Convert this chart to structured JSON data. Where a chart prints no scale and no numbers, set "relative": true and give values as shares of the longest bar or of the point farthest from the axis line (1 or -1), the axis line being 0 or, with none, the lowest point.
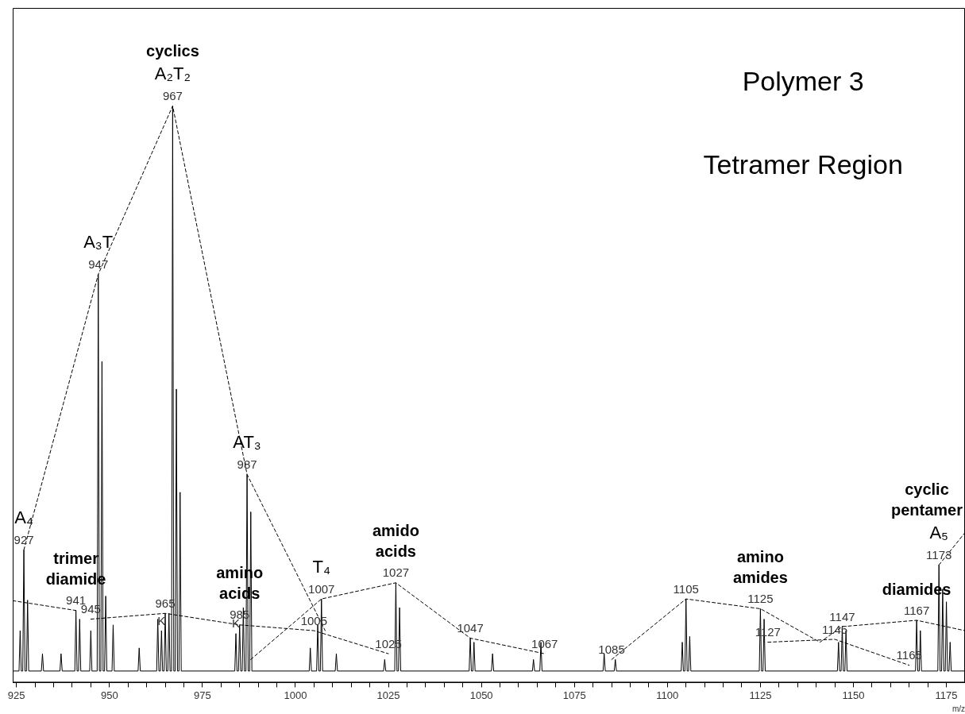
{
  "chart_data": {
    "type": "line",
    "title": "Polymer 3",
    "subtitle": "Tetramer Region",
    "xlabel": "m/z",
    "relative": true,
    "grid": false,
    "legend": false,
    "marker": "none",
    "xlim": [
      924,
      1180
    ],
    "xticks": [
      925,
      {
        "value": 930,
        "label": null
      },
      {
        "value": 935,
        "label": null
      },
      {
        "value": 940,
        "label": null
      },
      {
        "value": 945,
        "label": null
      },
      950,
      {
        "value": 955,
        "label": null
      },
      {
        "value": 960,
        "label": null
      },
      {
        "value": 965,
        "label": null
      },
      {
        "value": 970,
        "label": null
      },
      975,
      {
        "value": 980,
        "label": null
      },
      {
        "value": 985,
        "label": null
      },
      {
        "value": 990,
        "label": null
      },
      {
        "value": 995,
        "label": null
      },
      1000,
      {
        "value": 1005,
        "label": null
      },
      {
        "value": 1010,
        "label": null
      },
      {
        "value": 1015,
        "label": null
      },
      {
        "value": 1020,
        "label": null
      },
      1025,
      {
        "value": 1030,
        "label": null
      },
      {
        "value": 1035,
        "label": null
      },
      {
        "value": 1040,
        "label": null
      },
      {
        "value": 1045,
        "label": null
      },
      1050,
      {
        "value": 1055,
        "label": null
      },
      {
        "value": 1060,
        "label": null
      },
      {
        "value": 1065,
        "label": null
      },
      {
        "value": 1070,
        "label": null
      },
      1075,
      {
        "value": 1080,
        "label": null
      },
      {
        "value": 1085,
        "label": null
      },
      {
        "value": 1090,
        "label": null
      },
      {
        "value": 1095,
        "label": null
      },
      1100,
      {
        "value": 1105,
        "label": null
      },
      {
        "value": 1110,
        "label": null
      },
      {
        "value": 1115,
        "label": null
      },
      {
        "value": 1120,
        "label": null
      },
      1125,
      {
        "value": 1130,
        "label": null
      },
      {
        "value": 1135,
        "label": null
      },
      {
        "value": 1140,
        "label": null
      },
      {
        "value": 1145,
        "label": null
      },
      1150,
      {
        "value": 1155,
        "label": null
      },
      {
        "value": 1160,
        "label": null
      },
      {
        "value": 1165,
        "label": null
      },
      {
        "value": 1170,
        "label": null
      },
      1175
    ],
    "series": [
      {
        "color": "#000000",
        "line_style": "solid",
        "x": [
          924,
          925.7,
          926,
          926.3,
          926.7,
          927,
          927.3,
          927.7,
          928,
          928.3,
          931.7,
          932,
          932.3,
          936.7,
          937,
          937.3,
          940.7,
          941,
          941.3,
          941.7,
          942,
          942.3,
          944.7,
          945,
          945.3,
          946.7,
          947,
          947.3,
          947.7,
          948,
          948.3,
          948.7,
          949,
          949.3,
          950.7,
          951,
          951.3,
          957.7,
          958,
          958.3,
          962.7,
          963,
          963.3,
          963.7,
          964,
          964.3,
          964.7,
          965,
          965.3,
          965.7,
          966,
          966.3,
          966.7,
          967,
          967.3,
          967.7,
          968,
          968.3,
          968.7,
          969,
          969.3,
          983.7,
          984,
          984.3,
          984.7,
          985,
          985.3,
          985.7,
          986,
          986.3,
          986.7,
          987,
          987.3,
          987.7,
          988,
          988.3,
          1003.7,
          1004,
          1004.3,
          1005.7,
          1006,
          1006.3,
          1006.7,
          1007,
          1007.3,
          1010.7,
          1011,
          1011.3,
          1023.7,
          1024,
          1024.3,
          1026.7,
          1027,
          1027.3,
          1027.7,
          1028,
          1028.3,
          1046.7,
          1047,
          1047.3,
          1047.7,
          1048,
          1048.3,
          1052.7,
          1053,
          1053.3,
          1063.7,
          1064,
          1064.3,
          1065.7,
          1066,
          1066.3,
          1082.7,
          1083,
          1083.3,
          1085.7,
          1086,
          1086.3,
          1103.7,
          1104,
          1104.3,
          1104.7,
          1105,
          1105.3,
          1105.7,
          1106,
          1106.3,
          1124.7,
          1125,
          1125.3,
          1125.7,
          1126,
          1126.3,
          1145.7,
          1146,
          1146.3,
          1146.7,
          1147,
          1147.3,
          1147.7,
          1148,
          1148.3,
          1166.7,
          1167,
          1167.3,
          1167.7,
          1168,
          1168.3,
          1172.7,
          1173,
          1173.3,
          1173.7,
          1174,
          1174.3,
          1174.7,
          1175,
          1175.3,
          1175.7,
          1176,
          1176.3,
          1180
        ],
        "values": [
          0.02,
          0.02,
          0.09,
          0.02,
          0.02,
          0.23,
          0.02,
          0.02,
          0.143,
          0.02,
          0.02,
          0.05,
          0.02,
          0.02,
          0.05,
          0.02,
          0.02,
          0.125,
          0.02,
          0.02,
          0.11,
          0.02,
          0.02,
          0.09,
          0.02,
          0.02,
          0.708,
          0.02,
          0.02,
          0.557,
          0.02,
          0.02,
          0.15,
          0.02,
          0.02,
          0.1,
          0.02,
          0.02,
          0.06,
          0.02,
          0.02,
          0.11,
          0.02,
          0.02,
          0.09,
          0.02,
          0.02,
          0.12,
          0.02,
          0.02,
          0.12,
          0.02,
          0.02,
          1,
          0.02,
          0.02,
          0.509,
          0.02,
          0.02,
          0.33,
          0.02,
          0.02,
          0.085,
          0.02,
          0.02,
          0.1,
          0.02,
          0.02,
          0.13,
          0.02,
          0.02,
          0.361,
          0.02,
          0.02,
          0.296,
          0.02,
          0.02,
          0.06,
          0.02,
          0.02,
          0.1,
          0.02,
          0.02,
          0.145,
          0.02,
          0.02,
          0.05,
          0.02,
          0.02,
          0.04,
          0.02,
          0.02,
          0.173,
          0.02,
          0.02,
          0.13,
          0.02,
          0.02,
          0.077,
          0.02,
          0.02,
          0.07,
          0.02,
          0.02,
          0.05,
          0.02,
          0.02,
          0.04,
          0.02,
          0.02,
          0.07,
          0.02,
          0.02,
          0.05,
          0.02,
          0.02,
          0.04,
          0.02,
          0.02,
          0.07,
          0.02,
          0.02,
          0.145,
          0.02,
          0.02,
          0.08,
          0.02,
          0.02,
          0.128,
          0.02,
          0.02,
          0.11,
          0.02,
          0.02,
          0.07,
          0.02,
          0.02,
          0.097,
          0.02,
          0.02,
          0.09,
          0.02,
          0.02,
          0.108,
          0.02,
          0.02,
          0.09,
          0.02,
          0.02,
          0.204,
          0.02,
          0.02,
          0.162,
          0.02,
          0.02,
          0.14,
          0.02,
          0.02,
          0.07,
          0.02,
          0.02
        ]
      },
      {
        "color": "#000000",
        "line_style": "dashed",
        "x": [
          927,
          947,
          967,
          987,
          1008
        ],
        "values": [
          0.23,
          0.708,
          1,
          0.361,
          0.09
        ]
      },
      {
        "color": "#000000",
        "line_style": "dashed",
        "x": [
          924,
          941
        ],
        "values": [
          0.142,
          0.125
        ]
      },
      {
        "color": "#000000",
        "line_style": "dashed",
        "x": [
          945,
          965,
          985,
          1005,
          1025
        ],
        "values": [
          0.11,
          0.12,
          0.1,
          0.09,
          0.05
        ]
      },
      {
        "color": "#000000",
        "line_style": "dashed",
        "x": [
          988,
          1007,
          1027,
          1047,
          1067
        ],
        "values": [
          0.04,
          0.145,
          0.173,
          0.077,
          0.05
        ]
      },
      {
        "color": "#000000",
        "line_style": "dashed",
        "x": [
          1085,
          1105,
          1125,
          1141,
          1147,
          1167,
          1180
        ],
        "values": [
          0.04,
          0.145,
          0.128,
          0.07,
          0.097,
          0.108,
          0.09
        ]
      },
      {
        "color": "#000000",
        "line_style": "dashed",
        "x": [
          1127,
          1145,
          1165
        ],
        "values": [
          0.07,
          0.075,
          0.03
        ]
      },
      {
        "color": "#000000",
        "line_style": "dashed",
        "x": [
          1173,
          1180
        ],
        "values": [
          0.204,
          0.26
        ]
      }
    ],
    "annotations": [
      {
        "text": "cyclics",
        "x": 967,
        "y": 1
      },
      {
        "text": "A₂T₂",
        "x": 967,
        "y": 1
      },
      {
        "text": "967",
        "x": 967,
        "y": 1
      },
      {
        "text": "A₃T",
        "x": 947,
        "y": 0.708
      },
      {
        "text": "947",
        "x": 947,
        "y": 0.708
      },
      {
        "text": "AT₃",
        "x": 987,
        "y": 0.361
      },
      {
        "text": "987",
        "x": 987,
        "y": 0.361
      },
      {
        "text": "A₄",
        "x": 927,
        "y": 0.23
      },
      {
        "text": "927",
        "x": 927,
        "y": 0.23
      },
      {
        "text": "trimer\ndiamide",
        "x": 941,
        "y": 0.125
      },
      {
        "text": "941",
        "x": 941,
        "y": 0.125
      },
      {
        "text": "945",
        "x": 945,
        "y": 0.11
      },
      {
        "text": "965",
        "x": 965,
        "y": 0.12
      },
      {
        "text": "K",
        "x": 964,
        "y": 0.09
      },
      {
        "text": "amino\nacids",
        "x": 985,
        "y": 0.1
      },
      {
        "text": "985",
        "x": 985,
        "y": 0.1
      },
      {
        "text": "K",
        "x": 984,
        "y": 0.085
      },
      {
        "text": "T₄",
        "x": 1007,
        "y": 0.145
      },
      {
        "text": "1007",
        "x": 1007,
        "y": 0.145
      },
      {
        "text": "1005",
        "x": 1005,
        "y": 0.09
      },
      {
        "text": "amido\nacids",
        "x": 1027,
        "y": 0.173
      },
      {
        "text": "1027",
        "x": 1027,
        "y": 0.173
      },
      {
        "text": "1025",
        "x": 1025,
        "y": 0.05
      },
      {
        "text": "1047",
        "x": 1047,
        "y": 0.077
      },
      {
        "text": "1067",
        "x": 1067,
        "y": 0.05
      },
      {
        "text": "1085",
        "x": 1085,
        "y": 0.04
      },
      {
        "text": "1105",
        "x": 1105,
        "y": 0.145
      },
      {
        "text": "amino\namides",
        "x": 1125,
        "y": 0.128
      },
      {
        "text": "1125",
        "x": 1125,
        "y": 0.128
      },
      {
        "text": "1127",
        "x": 1127,
        "y": 0.07
      },
      {
        "text": "1145",
        "x": 1145,
        "y": 0.075
      },
      {
        "text": "1147",
        "x": 1147,
        "y": 0.097
      },
      {
        "text": "1165",
        "x": 1165,
        "y": 0.03
      },
      {
        "text": "diamides",
        "x": 1167,
        "y": 0.108
      },
      {
        "text": "1167",
        "x": 1167,
        "y": 0.108
      },
      {
        "text": "cyclic\npentamer",
        "x": 1173,
        "y": 0.204
      },
      {
        "text": "A₅",
        "x": 1173,
        "y": 0.204
      },
      {
        "text": "1173",
        "x": 1173,
        "y": 0.204
      }
    ]
  }
}
